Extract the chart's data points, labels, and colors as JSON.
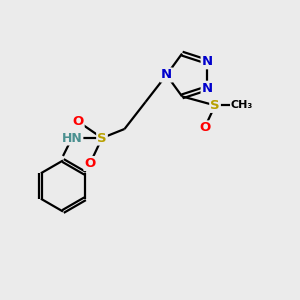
{
  "bg_color": "#ebebeb",
  "atom_colors": {
    "C": "#000000",
    "N": "#0000cc",
    "S": "#b8a000",
    "O": "#ff0000",
    "H": "#4a9090"
  },
  "bond_color": "#000000",
  "bond_width": 1.6,
  "dbo": 0.13
}
